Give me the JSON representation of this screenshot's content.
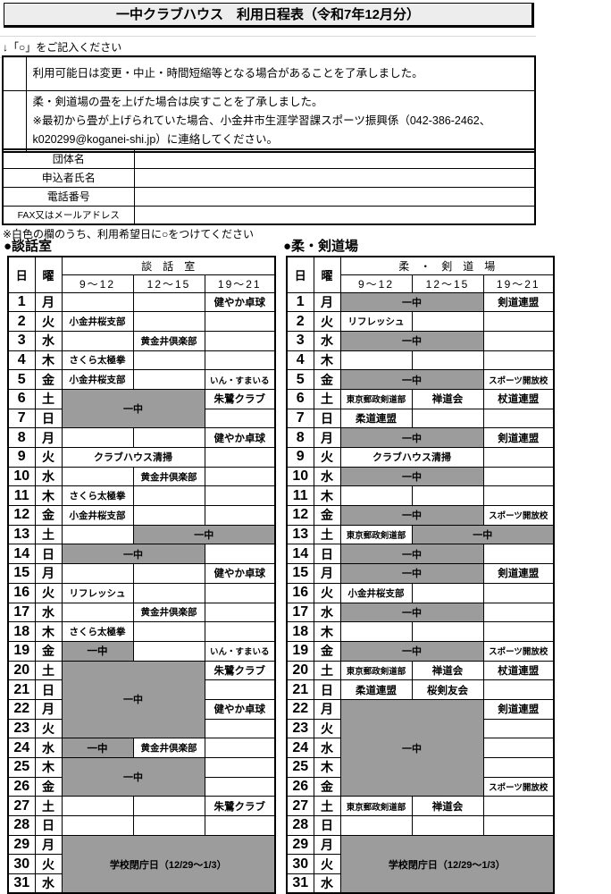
{
  "page": {
    "title": "一中クラブハウス　利用日程表（令和7年12月分）"
  },
  "hint": "↓「○」をご記入ください",
  "agreement": {
    "rows": [
      {
        "text": "利用可能日は変更・中止・時間短縮等となる場合があることを了承しました。"
      },
      {
        "line1": "柔・剣道場の畳を上げた場合は戻すことを了承しました。",
        "line2": "※最初から畳が上げられていた場合、小金井市生涯学習課スポーツ振興係（042-386-2462、k020299@koganei-shi.jp）に連絡してください。"
      }
    ]
  },
  "form": {
    "rows": [
      {
        "label": "団体名"
      },
      {
        "label": "申込者氏名"
      },
      {
        "label": "電話番号"
      },
      {
        "label": "FAX又はメールアドレス"
      }
    ]
  },
  "note": "※白色の欄のうち、利用希望日に○をつけてください",
  "colors": {
    "closed_gray": "#9c9c9c",
    "title_bg": "#ededed"
  },
  "tables": [
    {
      "section_label": "●談話室",
      "room_header": "談　話　室",
      "day_col": "日",
      "week_col": "曜",
      "times": [
        "9～12",
        "12～15",
        "19～21"
      ],
      "rows": [
        {
          "d": 1,
          "w": "月",
          "cells": [
            {
              "t": ""
            },
            {
              "t": ""
            },
            {
              "t": "健やか卓球"
            }
          ]
        },
        {
          "d": 2,
          "w": "火",
          "cells": [
            {
              "t": "小金井桜支部"
            },
            {
              "t": ""
            },
            {
              "t": ""
            }
          ]
        },
        {
          "d": 3,
          "w": "水",
          "cells": [
            {
              "t": ""
            },
            {
              "t": "黄金井倶楽部"
            },
            {
              "t": ""
            }
          ]
        },
        {
          "d": 4,
          "w": "木",
          "cells": [
            {
              "t": "さくら太極拳"
            },
            {
              "t": ""
            },
            {
              "t": ""
            }
          ]
        },
        {
          "d": 5,
          "w": "金",
          "cells": [
            {
              "t": "小金井桜支部"
            },
            {
              "t": ""
            },
            {
              "t": "いん・すまいる"
            }
          ]
        },
        {
          "d": 6,
          "w": "土",
          "cells": [
            {
              "t": "一中",
              "c": 2,
              "r": 2,
              "g": 1
            },
            {
              "t": "朱鷺クラブ"
            }
          ]
        },
        {
          "d": 7,
          "w": "日",
          "cells": [
            {
              "t": ""
            }
          ]
        },
        {
          "d": 8,
          "w": "月",
          "cells": [
            {
              "t": ""
            },
            {
              "t": ""
            },
            {
              "t": "健やか卓球"
            }
          ]
        },
        {
          "d": 9,
          "w": "火",
          "cells": [
            {
              "t": "クラブハウス清掃",
              "c": 2
            },
            {
              "t": ""
            }
          ]
        },
        {
          "d": 10,
          "w": "水",
          "cells": [
            {
              "t": ""
            },
            {
              "t": "黄金井倶楽部"
            },
            {
              "t": ""
            }
          ]
        },
        {
          "d": 11,
          "w": "木",
          "cells": [
            {
              "t": "さくら太極拳"
            },
            {
              "t": ""
            },
            {
              "t": ""
            }
          ]
        },
        {
          "d": 12,
          "w": "金",
          "cells": [
            {
              "t": "小金井桜支部"
            },
            {
              "t": ""
            },
            {
              "t": ""
            }
          ]
        },
        {
          "d": 13,
          "w": "土",
          "cells": [
            {
              "t": ""
            },
            {
              "t": "一中",
              "c": 2,
              "g": 1
            }
          ]
        },
        {
          "d": 14,
          "w": "日",
          "cells": [
            {
              "t": "一中",
              "c": 2,
              "g": 1
            },
            {
              "t": ""
            }
          ]
        },
        {
          "d": 15,
          "w": "月",
          "cells": [
            {
              "t": ""
            },
            {
              "t": ""
            },
            {
              "t": "健やか卓球"
            }
          ]
        },
        {
          "d": 16,
          "w": "火",
          "cells": [
            {
              "t": "リフレッシュ"
            },
            {
              "t": ""
            },
            {
              "t": ""
            }
          ]
        },
        {
          "d": 17,
          "w": "水",
          "cells": [
            {
              "t": ""
            },
            {
              "t": "黄金井倶楽部"
            },
            {
              "t": ""
            }
          ]
        },
        {
          "d": 18,
          "w": "木",
          "cells": [
            {
              "t": "さくら太極拳"
            },
            {
              "t": ""
            },
            {
              "t": ""
            }
          ]
        },
        {
          "d": 19,
          "w": "金",
          "cells": [
            {
              "t": "一中",
              "g": 1
            },
            {
              "t": ""
            },
            {
              "t": "いん・すまいる"
            }
          ]
        },
        {
          "d": 20,
          "w": "土",
          "cells": [
            {
              "t": "一中",
              "c": 2,
              "r": 4,
              "g": 1
            },
            {
              "t": "朱鷺クラブ"
            }
          ]
        },
        {
          "d": 21,
          "w": "日",
          "cells": [
            {
              "t": ""
            }
          ]
        },
        {
          "d": 22,
          "w": "月",
          "cells": [
            {
              "t": "健やか卓球"
            }
          ]
        },
        {
          "d": 23,
          "w": "火",
          "cells": [
            {
              "t": ""
            }
          ]
        },
        {
          "d": 24,
          "w": "水",
          "cells": [
            {
              "t": "一中",
              "g": 1
            },
            {
              "t": "黄金井倶楽部"
            },
            {
              "t": ""
            }
          ]
        },
        {
          "d": 25,
          "w": "木",
          "cells": [
            {
              "t": "一中",
              "c": 2,
              "r": 2,
              "g": 1
            },
            {
              "t": ""
            }
          ]
        },
        {
          "d": 26,
          "w": "金",
          "cells": [
            {
              "t": ""
            }
          ]
        },
        {
          "d": 27,
          "w": "土",
          "cells": [
            {
              "t": ""
            },
            {
              "t": ""
            },
            {
              "t": "朱鷺クラブ"
            }
          ]
        },
        {
          "d": 28,
          "w": "日",
          "cells": [
            {
              "t": ""
            },
            {
              "t": ""
            },
            {
              "t": ""
            }
          ]
        },
        {
          "d": 29,
          "w": "月",
          "cells": [
            {
              "t": "学校閉庁日（12/29～1/3）",
              "c": 3,
              "r": 3,
              "g": 1
            }
          ]
        },
        {
          "d": 30,
          "w": "火",
          "cells": []
        },
        {
          "d": 31,
          "w": "水",
          "cells": []
        }
      ]
    },
    {
      "section_label": "●柔・剣道場",
      "room_header": "柔　・　剣　道　場",
      "day_col": "日",
      "week_col": "曜",
      "times": [
        "9～12",
        "12～15",
        "19～21"
      ],
      "rows": [
        {
          "d": 1,
          "w": "月",
          "cells": [
            {
              "t": "一中",
              "c": 2,
              "g": 1
            },
            {
              "t": "剣道連盟"
            }
          ]
        },
        {
          "d": 2,
          "w": "火",
          "cells": [
            {
              "t": "リフレッシュ"
            },
            {
              "t": ""
            },
            {
              "t": ""
            }
          ]
        },
        {
          "d": 3,
          "w": "水",
          "cells": [
            {
              "t": "一中",
              "c": 2,
              "g": 1
            },
            {
              "t": ""
            }
          ]
        },
        {
          "d": 4,
          "w": "木",
          "cells": [
            {
              "t": ""
            },
            {
              "t": ""
            },
            {
              "t": ""
            }
          ]
        },
        {
          "d": 5,
          "w": "金",
          "cells": [
            {
              "t": "一中",
              "c": 2,
              "g": 1
            },
            {
              "t": "スポーツ開放校"
            }
          ]
        },
        {
          "d": 6,
          "w": "土",
          "cells": [
            {
              "t": "東京郵政剣道部"
            },
            {
              "t": "禅道会"
            },
            {
              "t": "杖道連盟"
            }
          ]
        },
        {
          "d": 7,
          "w": "日",
          "cells": [
            {
              "t": "柔道連盟"
            },
            {
              "t": ""
            },
            {
              "t": ""
            }
          ]
        },
        {
          "d": 8,
          "w": "月",
          "cells": [
            {
              "t": "一中",
              "c": 2,
              "g": 1
            },
            {
              "t": "剣道連盟"
            }
          ]
        },
        {
          "d": 9,
          "w": "火",
          "cells": [
            {
              "t": "クラブハウス清掃",
              "c": 2
            },
            {
              "t": ""
            }
          ]
        },
        {
          "d": 10,
          "w": "水",
          "cells": [
            {
              "t": "一中",
              "c": 2,
              "g": 1
            },
            {
              "t": ""
            }
          ]
        },
        {
          "d": 11,
          "w": "木",
          "cells": [
            {
              "t": ""
            },
            {
              "t": ""
            },
            {
              "t": ""
            }
          ]
        },
        {
          "d": 12,
          "w": "金",
          "cells": [
            {
              "t": "一中",
              "c": 2,
              "g": 1
            },
            {
              "t": "スポーツ開放校"
            }
          ]
        },
        {
          "d": 13,
          "w": "土",
          "cells": [
            {
              "t": "東京郵政剣道部"
            },
            {
              "t": "一中",
              "c": 2,
              "g": 1
            }
          ]
        },
        {
          "d": 14,
          "w": "日",
          "cells": [
            {
              "t": "一中",
              "c": 2,
              "g": 1
            },
            {
              "t": ""
            }
          ]
        },
        {
          "d": 15,
          "w": "月",
          "cells": [
            {
              "t": "一中",
              "c": 2,
              "g": 1
            },
            {
              "t": "剣道連盟"
            }
          ]
        },
        {
          "d": 16,
          "w": "火",
          "cells": [
            {
              "t": "小金井桜支部"
            },
            {
              "t": ""
            },
            {
              "t": ""
            }
          ]
        },
        {
          "d": 17,
          "w": "水",
          "cells": [
            {
              "t": "一中",
              "c": 2,
              "g": 1
            },
            {
              "t": ""
            }
          ]
        },
        {
          "d": 18,
          "w": "木",
          "cells": [
            {
              "t": ""
            },
            {
              "t": ""
            },
            {
              "t": ""
            }
          ]
        },
        {
          "d": 19,
          "w": "金",
          "cells": [
            {
              "t": "一中",
              "c": 2,
              "g": 1
            },
            {
              "t": "スポーツ開放校"
            }
          ]
        },
        {
          "d": 20,
          "w": "土",
          "cells": [
            {
              "t": "東京郵政剣道部"
            },
            {
              "t": "禅道会"
            },
            {
              "t": "杖道連盟"
            }
          ]
        },
        {
          "d": 21,
          "w": "日",
          "cells": [
            {
              "t": "柔道連盟"
            },
            {
              "t": "桜剣友会"
            },
            {
              "t": ""
            }
          ]
        },
        {
          "d": 22,
          "w": "月",
          "cells": [
            {
              "t": "一中",
              "c": 2,
              "r": 5,
              "g": 1
            },
            {
              "t": "剣道連盟"
            }
          ]
        },
        {
          "d": 23,
          "w": "火",
          "cells": [
            {
              "t": ""
            }
          ]
        },
        {
          "d": 24,
          "w": "水",
          "cells": [
            {
              "t": ""
            }
          ]
        },
        {
          "d": 25,
          "w": "木",
          "cells": [
            {
              "t": ""
            }
          ]
        },
        {
          "d": 26,
          "w": "金",
          "cells": [
            {
              "t": "スポーツ開放校"
            }
          ]
        },
        {
          "d": 27,
          "w": "土",
          "cells": [
            {
              "t": "東京郵政剣道部"
            },
            {
              "t": "禅道会"
            },
            {
              "t": ""
            }
          ]
        },
        {
          "d": 28,
          "w": "日",
          "cells": [
            {
              "t": ""
            },
            {
              "t": ""
            },
            {
              "t": ""
            }
          ]
        },
        {
          "d": 29,
          "w": "月",
          "cells": [
            {
              "t": "学校閉庁日（12/29～1/3）",
              "c": 3,
              "r": 3,
              "g": 1
            }
          ]
        },
        {
          "d": 30,
          "w": "火",
          "cells": []
        },
        {
          "d": 31,
          "w": "水",
          "cells": []
        }
      ]
    }
  ]
}
